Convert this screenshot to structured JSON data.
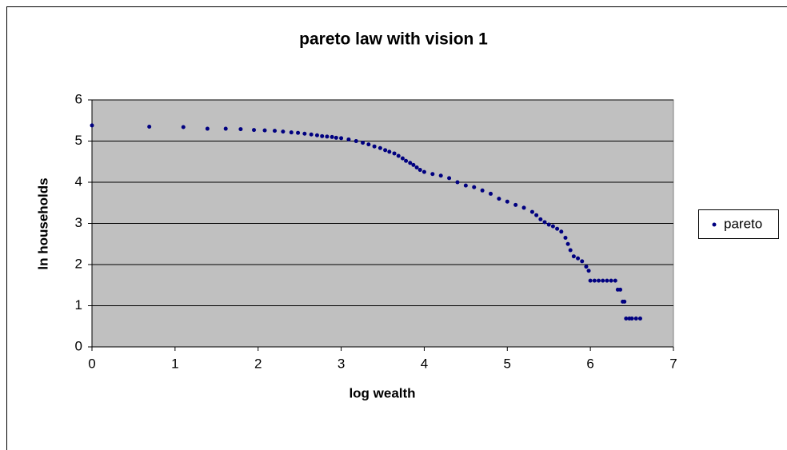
{
  "chart_data": {
    "type": "scatter",
    "title": "pareto law with vision 1",
    "x_label": "log wealth",
    "y_label": "ln households",
    "series": [
      {
        "name": "pareto",
        "color": "#000080",
        "x": [
          0,
          0.69,
          1.1,
          1.39,
          1.61,
          1.79,
          1.95,
          2.08,
          2.2,
          2.3,
          2.4,
          2.48,
          2.56,
          2.64,
          2.71,
          2.77,
          2.83,
          2.89,
          2.94,
          3.0,
          3.09,
          3.18,
          3.26,
          3.33,
          3.4,
          3.47,
          3.53,
          3.58,
          3.64,
          3.69,
          3.74,
          3.78,
          3.83,
          3.87,
          3.91,
          3.95,
          4.0,
          4.1,
          4.2,
          4.3,
          4.4,
          4.5,
          4.6,
          4.7,
          4.8,
          4.9,
          5.0,
          5.1,
          5.2,
          5.3,
          5.35,
          5.4,
          5.45,
          5.5,
          5.55,
          5.6,
          5.65,
          5.7,
          5.73,
          5.76,
          5.8,
          5.85,
          5.9,
          5.95,
          5.98,
          6.0,
          6.05,
          6.1,
          6.15,
          6.2,
          6.25,
          6.3,
          6.33,
          6.36,
          6.39,
          6.41,
          6.43,
          6.47,
          6.5,
          6.55,
          6.6
        ],
        "values": [
          5.38,
          5.35,
          5.34,
          5.3,
          5.3,
          5.29,
          5.27,
          5.26,
          5.25,
          5.23,
          5.21,
          5.2,
          5.18,
          5.16,
          5.14,
          5.12,
          5.11,
          5.1,
          5.08,
          5.07,
          5.04,
          5.0,
          4.96,
          4.92,
          4.87,
          4.83,
          4.78,
          4.74,
          4.7,
          4.64,
          4.58,
          4.52,
          4.47,
          4.42,
          4.36,
          4.3,
          4.25,
          4.2,
          4.16,
          4.1,
          4.0,
          3.92,
          3.88,
          3.8,
          3.72,
          3.6,
          3.53,
          3.45,
          3.38,
          3.28,
          3.2,
          3.1,
          3.03,
          2.97,
          2.93,
          2.87,
          2.8,
          2.65,
          2.5,
          2.35,
          2.2,
          2.15,
          2.08,
          1.95,
          1.85,
          1.61,
          1.61,
          1.61,
          1.61,
          1.61,
          1.61,
          1.61,
          1.39,
          1.39,
          1.1,
          1.1,
          0.69,
          0.69,
          0.69,
          0.69,
          0.69
        ]
      }
    ],
    "xlim": [
      0,
      7
    ],
    "xticks": [
      0,
      1,
      2,
      3,
      4,
      5,
      6,
      7
    ],
    "ylim": [
      0,
      6
    ],
    "yticks": [
      0,
      1,
      2,
      3,
      4,
      5,
      6
    ],
    "grid": true,
    "legend": "right"
  }
}
